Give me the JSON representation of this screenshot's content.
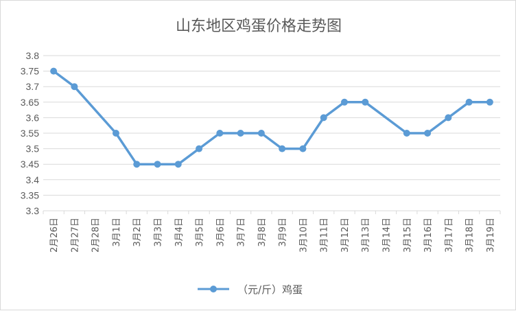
{
  "chart_data": {
    "type": "line",
    "title": "山东地区鸡蛋价格走势图",
    "xlabel": "",
    "ylabel": "",
    "ylim": [
      3.3,
      3.8
    ],
    "ystep": 0.05,
    "yticks": [
      "3.3",
      "3.35",
      "3.4",
      "3.45",
      "3.5",
      "3.55",
      "3.6",
      "3.65",
      "3.7",
      "3.75",
      "3.8"
    ],
    "grid": true,
    "legend_position": "bottom",
    "categories": [
      "2月26日",
      "2月27日",
      "2月28日",
      "3月1日",
      "3月2日",
      "3月3日",
      "3月4日",
      "3月5日",
      "3月6日",
      "3月7日",
      "3月8日",
      "3月9日",
      "3月10日",
      "3月11日",
      "3月12日",
      "3月13日",
      "3月14日",
      "3月15日",
      "3月16日",
      "3月17日",
      "3月18日",
      "3月19日"
    ],
    "series": [
      {
        "name": "（元/斤）鸡蛋",
        "color": "#5b9bd5",
        "values": [
          3.75,
          3.7,
          null,
          3.55,
          3.45,
          3.45,
          3.45,
          3.5,
          3.55,
          3.55,
          3.55,
          3.5,
          3.5,
          3.6,
          3.65,
          3.65,
          null,
          3.55,
          3.55,
          3.6,
          3.65,
          3.65
        ]
      }
    ]
  }
}
